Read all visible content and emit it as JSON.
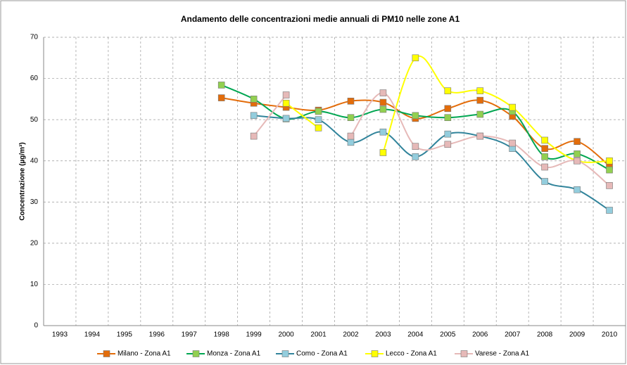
{
  "chart_data": {
    "type": "line",
    "title": "Andamento delle concentrazioni medie annuali di PM10 nelle zone A1",
    "y_label": "Concentrazione (µg/m³)",
    "categories": [
      "1993",
      "1994",
      "1995",
      "1996",
      "1997",
      "1998",
      "1999",
      "2000",
      "2001",
      "2002",
      "2003",
      "2004",
      "2005",
      "2006",
      "2007",
      "2008",
      "2009",
      "2010"
    ],
    "ylim": [
      0,
      70
    ],
    "yticks": [
      0,
      10,
      20,
      30,
      40,
      50,
      60,
      70
    ],
    "grid": true,
    "legend": "bottom",
    "series": [
      {
        "name": "Milano - Zona A1",
        "color": "#e36c0a",
        "marker_color": "#e36c0a",
        "values": [
          null,
          null,
          null,
          null,
          null,
          55.3,
          54,
          53,
          52.3,
          54.5,
          54.2,
          50.3,
          52.7,
          54.7,
          50.8,
          43,
          44.7,
          38.8
        ]
      },
      {
        "name": "Monza - Zona A1",
        "color": "#00a651",
        "marker_color": "#92d050",
        "values": [
          null,
          null,
          null,
          null,
          null,
          58.4,
          55,
          50.2,
          52,
          50.5,
          52.5,
          51,
          50.5,
          51.3,
          52,
          41,
          41.7,
          37.8
        ]
      },
      {
        "name": "Como - Zona A1",
        "color": "#31849b",
        "marker_color": "#93cddd",
        "values": [
          null,
          null,
          null,
          null,
          null,
          null,
          51,
          50.3,
          50,
          44.5,
          47,
          41,
          46.5,
          46,
          43,
          35,
          33,
          28
        ]
      },
      {
        "name": "Lecco - Zona A1",
        "color": "#ffff00",
        "marker_color": "#ffff00",
        "values": [
          null,
          null,
          null,
          null,
          null,
          null,
          null,
          54,
          48,
          null,
          42,
          65,
          57,
          57,
          53,
          45,
          40,
          40
        ]
      },
      {
        "name": "Varese - Zona A1",
        "color": "#e6b9b8",
        "marker_color": "#e6b9b8",
        "values": [
          null,
          null,
          null,
          null,
          null,
          null,
          46,
          56,
          null,
          46,
          56.5,
          43.5,
          44,
          46,
          44.3,
          38.5,
          40,
          34
        ]
      }
    ]
  }
}
